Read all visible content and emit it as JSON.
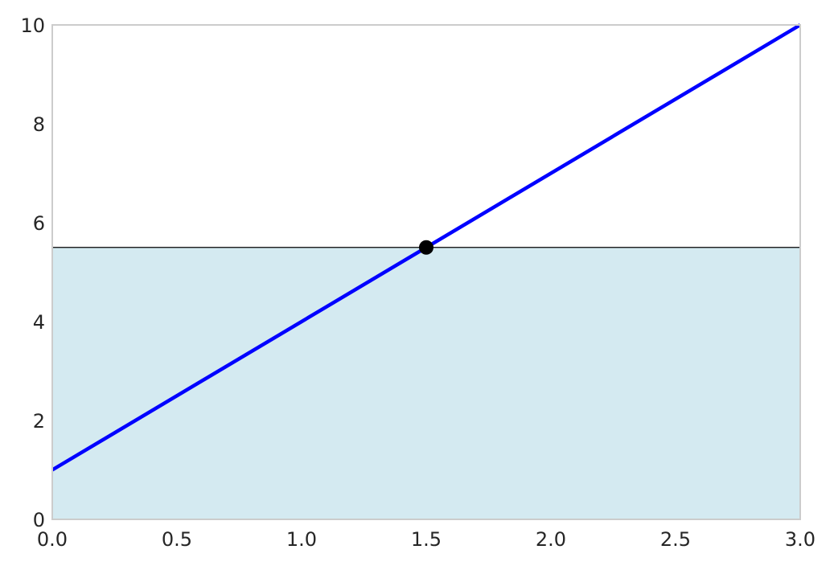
{
  "chart_data": {
    "type": "line",
    "title": "",
    "xlabel": "",
    "ylabel": "",
    "xlim": [
      0,
      3
    ],
    "ylim": [
      0,
      10
    ],
    "grid": false,
    "xticks": [
      "0.0",
      "0.5",
      "1.0",
      "1.5",
      "2.0",
      "2.5",
      "3.0"
    ],
    "xtick_values": [
      0,
      0.5,
      1.0,
      1.5,
      2.0,
      2.5,
      3.0
    ],
    "yticks": [
      "0",
      "2",
      "4",
      "6",
      "8",
      "10"
    ],
    "ytick_values": [
      0,
      2,
      4,
      6,
      8,
      10
    ],
    "series": [
      {
        "x": [
          0,
          3
        ],
        "y": [
          1,
          10
        ],
        "color": "#0000ff"
      }
    ],
    "hline": {
      "y": 5.5,
      "color": "#000000"
    },
    "fill_below": {
      "y": 5.5,
      "color": "#d4eaf1"
    },
    "point": {
      "x": 1.5,
      "y": 5.5,
      "color": "#000000"
    },
    "frame_color": "#cccccc"
  }
}
